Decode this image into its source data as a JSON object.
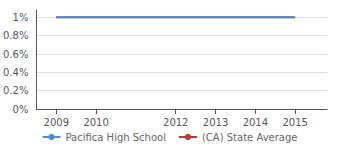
{
  "chart_data": {
    "type": "line",
    "series": [
      {
        "name": "Pacifica High School",
        "color": "#4a90d9",
        "x": [
          2009,
          2015
        ],
        "values": [
          1.0,
          1.0
        ]
      },
      {
        "name": "(CA) State Average",
        "color": "#c0392b",
        "x": [
          2009,
          2010,
          2011,
          2012,
          2013,
          2014,
          2015
        ],
        "values": [
          1.0,
          1.0,
          1.0,
          1.0,
          1.0,
          1.0,
          1.0
        ]
      }
    ],
    "xlim": [
      2008.5,
      2015.8
    ],
    "xticks": [
      2009,
      2010,
      2012,
      2013,
      2014,
      2015
    ],
    "ylim": [
      0,
      1.08
    ],
    "yticks": [
      {
        "value": 0.0,
        "label": "0%"
      },
      {
        "value": 0.2,
        "label": "0.2%"
      },
      {
        "value": 0.4,
        "label": "0.4%"
      },
      {
        "value": 0.6,
        "label": "0.6%"
      },
      {
        "value": 0.8,
        "label": "0.8%"
      },
      {
        "value": 1.0,
        "label": "1%"
      }
    ],
    "grid": true,
    "legend": "bottom"
  }
}
